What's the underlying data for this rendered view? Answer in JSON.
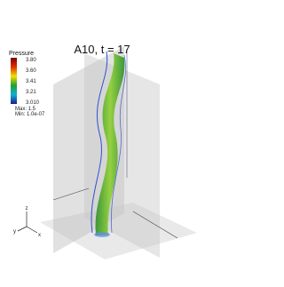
{
  "title": "A10, t = 17",
  "colorbar": {
    "title": "Pressure",
    "labels": [
      "3.80",
      "3.60",
      "3.41",
      "3.21",
      "3.010"
    ],
    "max": "Max: 1.5",
    "min": "Min: 1.0e-07"
  },
  "triad": {
    "z": "z",
    "y": "y",
    "x": "x"
  }
}
